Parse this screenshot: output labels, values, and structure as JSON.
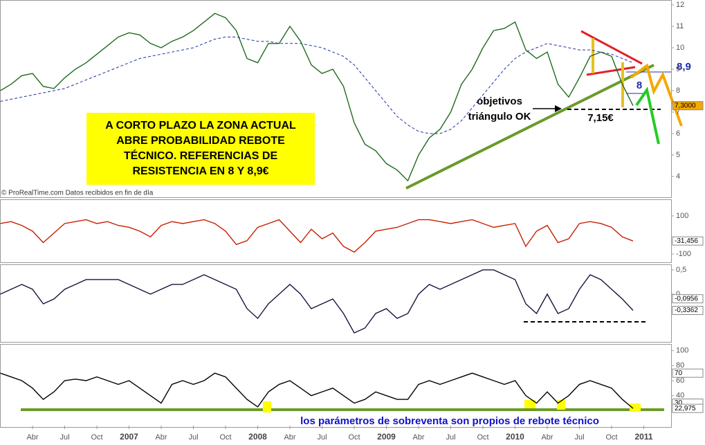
{
  "chart_data": [
    {
      "type": "line",
      "categories": [
        null,
        null,
        null,
        "Abr",
        null,
        null,
        "Jul",
        null,
        null,
        "Oct",
        null,
        null,
        "2007",
        null,
        null,
        "Abr",
        null,
        null,
        "Jul",
        null,
        null,
        "Oct",
        null,
        null,
        "2008",
        null,
        null,
        "Abr",
        null,
        null,
        "Jul",
        null,
        null,
        "Oct",
        null,
        null,
        "2009",
        null,
        null,
        "Abr",
        null,
        null,
        "Jul",
        null,
        null,
        "Oct",
        null,
        null,
        "2010",
        null,
        null,
        "Abr",
        null,
        null,
        "Jul",
        null,
        null,
        "Oct",
        null,
        null,
        "2011"
      ],
      "series": [
        {
          "color": "#1f6b1f",
          "dashed": false,
          "values": [
            8.0,
            8.3,
            8.7,
            8.8,
            8.2,
            8.1,
            8.6,
            9.0,
            9.3,
            9.7,
            10.1,
            10.5,
            10.7,
            10.6,
            10.2,
            10.0,
            10.3,
            10.5,
            10.8,
            11.2,
            11.6,
            11.4,
            10.8,
            9.5,
            9.3,
            10.2,
            10.2,
            11.0,
            10.3,
            9.2,
            8.8,
            9.0,
            8.2,
            6.5,
            5.5,
            5.2,
            4.6,
            4.3,
            3.8,
            5.0,
            5.8,
            6.2,
            7.0,
            8.3,
            9.0,
            10.0,
            10.8,
            10.9,
            11.2,
            9.9,
            9.5,
            9.8,
            8.3,
            7.7,
            8.6,
            9.6,
            9.8,
            9.6,
            8.3,
            7.3,
            null
          ]
        },
        {
          "color": "#1c2fa8",
          "dashed": true,
          "values": [
            7.5,
            7.6,
            7.7,
            7.8,
            7.9,
            8.0,
            8.1,
            8.3,
            8.5,
            8.7,
            8.9,
            9.1,
            9.3,
            9.5,
            9.6,
            9.7,
            9.8,
            9.9,
            10.0,
            10.2,
            10.4,
            10.5,
            10.5,
            10.4,
            10.3,
            10.3,
            10.2,
            10.2,
            10.2,
            10.1,
            10.0,
            9.8,
            9.6,
            9.2,
            8.6,
            8.0,
            7.4,
            6.8,
            6.4,
            6.1,
            6.0,
            6.0,
            6.2,
            6.6,
            7.2,
            7.8,
            8.4,
            9.0,
            9.5,
            9.8,
            10.0,
            10.2,
            10.1,
            10.0,
            9.9,
            9.9,
            9.8,
            9.7,
            9.5,
            9.3,
            null
          ]
        }
      ],
      "ylim": [
        3,
        12
      ],
      "yticks": [
        4,
        5,
        6,
        7,
        8,
        9,
        10,
        11,
        12
      ],
      "grid": false,
      "markers": [
        {
          "value": 7.3,
          "label": "7,3000",
          "color": "#f5a800"
        }
      ],
      "box_text": [
        "A CORTO PLAZO LA ZONA ACTUAL",
        "ABRE PROBABILIDAD REBOTE",
        "TÉCNICO. REFERENCIAS DE",
        "RESISTENCIA EN 8 Y 8,9€"
      ],
      "notes": [
        "objetivos",
        "triángulo OK",
        "7,15€",
        "8,9",
        "8"
      ],
      "source": "© ProRealTime.com Datos recibidos en fin de día"
    },
    {
      "type": "line",
      "series": [
        {
          "color": "#c81e00",
          "dashed": false,
          "values": [
            60,
            70,
            50,
            20,
            -40,
            10,
            60,
            70,
            80,
            60,
            70,
            50,
            40,
            20,
            -10,
            50,
            70,
            60,
            70,
            80,
            60,
            20,
            -50,
            -30,
            40,
            60,
            80,
            20,
            -40,
            30,
            -20,
            10,
            -60,
            -90,
            -40,
            20,
            30,
            40,
            60,
            80,
            80,
            70,
            60,
            70,
            80,
            60,
            40,
            50,
            60,
            -60,
            20,
            50,
            -40,
            -20,
            60,
            70,
            60,
            40,
            -10,
            -31.456,
            null
          ]
        }
      ],
      "ylim": [
        -147,
        187
      ],
      "yticks": [
        100,
        -100
      ],
      "grid": false,
      "markers": [
        {
          "value": -31.456,
          "label": "-31,456",
          "color": "#ffffff"
        }
      ]
    },
    {
      "type": "line",
      "series": [
        {
          "color": "#14143c",
          "dashed": false,
          "values": [
            0.0,
            0.1,
            0.2,
            0.1,
            -0.2,
            -0.1,
            0.1,
            0.2,
            0.3,
            0.3,
            0.3,
            0.3,
            0.2,
            0.1,
            0.0,
            0.1,
            0.2,
            0.2,
            0.3,
            0.4,
            0.3,
            0.2,
            0.1,
            -0.3,
            -0.5,
            -0.2,
            0.0,
            0.2,
            0.0,
            -0.3,
            -0.2,
            -0.1,
            -0.4,
            -0.8,
            -0.7,
            -0.4,
            -0.3,
            -0.5,
            -0.4,
            0.0,
            0.2,
            0.1,
            0.2,
            0.3,
            0.4,
            0.5,
            0.5,
            0.4,
            0.3,
            -0.2,
            -0.4,
            0.0,
            -0.4,
            -0.3,
            0.1,
            0.4,
            0.3,
            0.1,
            -0.1,
            -0.3362,
            null
          ]
        }
      ],
      "ylim": [
        -1.0,
        0.614
      ],
      "yticks": [
        {
          "value": 0.5,
          "label": "0,5"
        },
        0
      ],
      "grid": false,
      "markers": [
        {
          "value": -0.0956,
          "label": "-0,0956",
          "color": "#ffffff"
        },
        {
          "value": -0.3362,
          "label": "-0,3362",
          "color": "#ffffff"
        }
      ]
    },
    {
      "type": "line",
      "series": [
        {
          "color": "#000000",
          "dashed": false,
          "values": [
            70,
            65,
            60,
            50,
            35,
            45,
            60,
            62,
            60,
            65,
            60,
            55,
            60,
            50,
            40,
            30,
            55,
            60,
            55,
            60,
            70,
            65,
            50,
            35,
            25,
            45,
            55,
            60,
            50,
            40,
            45,
            50,
            40,
            30,
            35,
            45,
            40,
            35,
            35,
            55,
            60,
            55,
            60,
            65,
            70,
            65,
            60,
            55,
            60,
            40,
            30,
            45,
            30,
            40,
            55,
            60,
            55,
            50,
            35,
            22.975,
            null
          ]
        }
      ],
      "ylim": [
        0,
        108
      ],
      "yticks": [
        100,
        80,
        60,
        40
      ],
      "grid": false,
      "markers": [
        {
          "value": 70,
          "label": "70",
          "color": "#ffffff"
        },
        {
          "value": 30,
          "label": "30",
          "color": "#ffffff"
        },
        {
          "value": 22.975,
          "label": "22,975",
          "color": "#ffffff"
        }
      ],
      "annotation": "los parámetros de sobreventa son propios de rebote técnico"
    }
  ]
}
